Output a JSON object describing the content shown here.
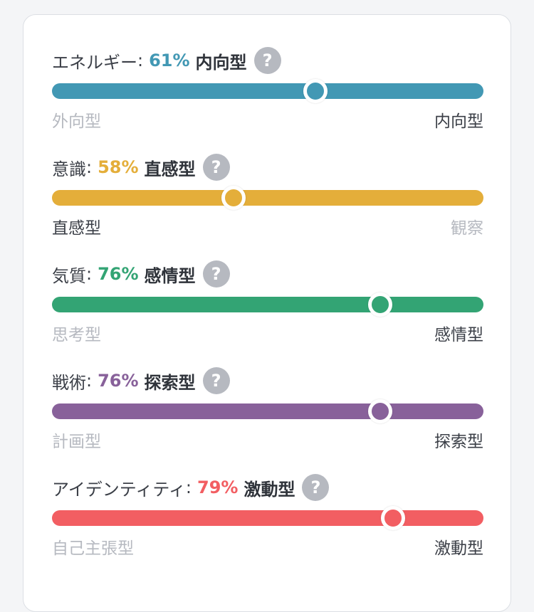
{
  "traits": [
    {
      "name": "エネルギー",
      "percent": "61%",
      "type": "内向型",
      "level": 61,
      "color": "#4298b4",
      "left_label": "外向型",
      "right_label": "内向型",
      "active_side": "right",
      "help_icon": "question-icon"
    },
    {
      "name": "意識",
      "percent": "58%",
      "type": "直感型",
      "level": 42,
      "color": "#e4ae3a",
      "left_label": "直感型",
      "right_label": "観察",
      "active_side": "left",
      "help_icon": "question-icon"
    },
    {
      "name": "気質",
      "percent": "76%",
      "type": "感情型",
      "level": 76,
      "color": "#33a474",
      "left_label": "思考型",
      "right_label": "感情型",
      "active_side": "right",
      "help_icon": "question-icon"
    },
    {
      "name": "戦術",
      "percent": "76%",
      "type": "探索型",
      "level": 76,
      "color": "#88619a",
      "left_label": "計画型",
      "right_label": "探索型",
      "active_side": "right",
      "help_icon": "question-icon"
    },
    {
      "name": "アイデンティティ",
      "percent": "79%",
      "type": "激動型",
      "level": 79,
      "color": "#f25e62",
      "left_label": "自己主張型",
      "right_label": "激動型",
      "active_side": "right",
      "help_icon": "question-icon"
    }
  ],
  "help_glyph": "?",
  "colon": ":"
}
